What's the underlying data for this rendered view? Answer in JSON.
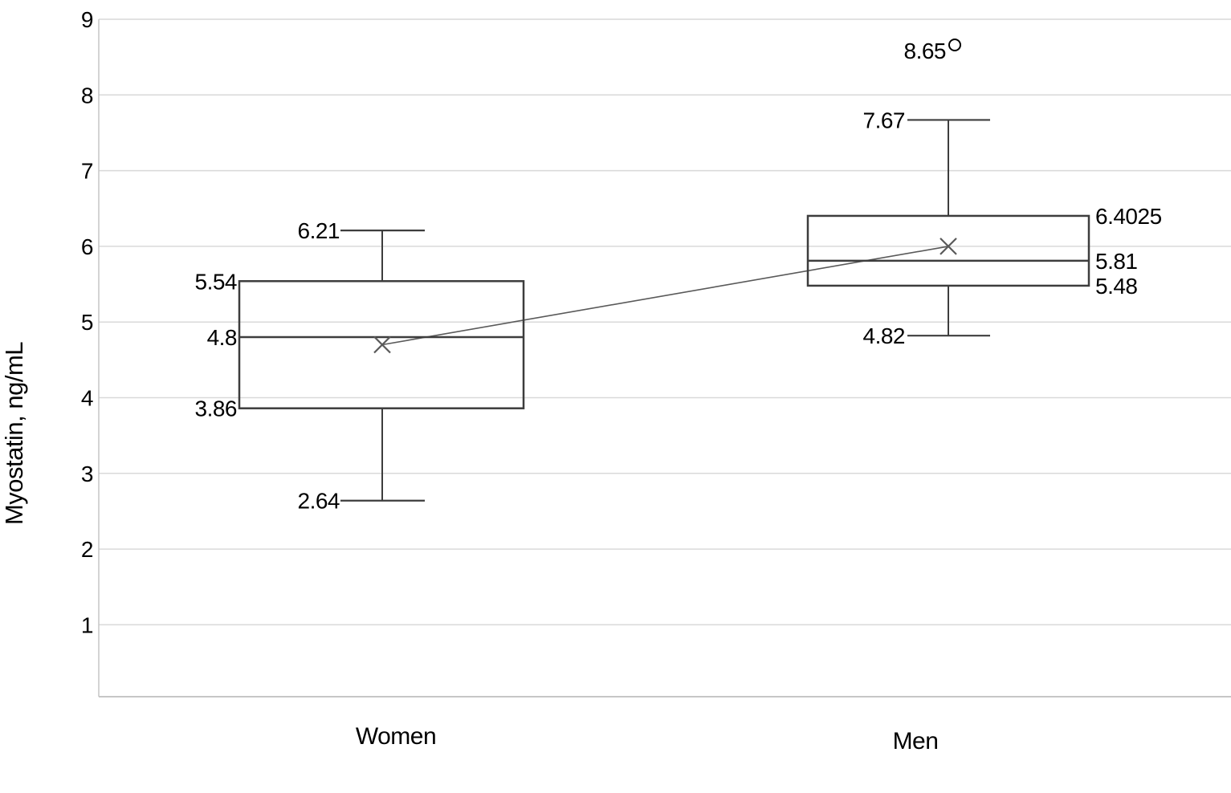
{
  "chart_data": {
    "type": "boxplot",
    "title": "",
    "xlabel": "",
    "ylabel": "Myostatin, ng/mL",
    "categories": [
      "Women",
      "Men"
    ],
    "y_ticks": [
      1,
      2,
      3,
      4,
      5,
      6,
      7,
      8,
      9
    ],
    "ylim": [
      0,
      9
    ],
    "grid": "horizontal",
    "legend": "none",
    "mean_marker": "x",
    "mean_connector_line": true,
    "boxes": [
      {
        "category": "Women",
        "whisker_low": 2.64,
        "q1": 3.86,
        "median": 4.8,
        "q3": 5.54,
        "whisker_high": 6.21,
        "mean": 4.7,
        "labels": {
          "whisker_high": "6.21",
          "q3": "5.54",
          "median": "4.8",
          "q1": "3.86",
          "whisker_low": "2.64"
        }
      },
      {
        "category": "Men",
        "whisker_low": 4.82,
        "q1": 5.48,
        "median": 5.81,
        "q3": 6.4025,
        "whisker_high": 7.67,
        "mean": 6.0,
        "outlier": {
          "value": 8.65,
          "label": "8.65",
          "marker": "circle"
        },
        "labels": {
          "whisker_high": "7.67",
          "q3": "6.4025",
          "median": "5.81",
          "q1": "5.48",
          "whisker_low": "4.82"
        }
      }
    ],
    "colors": {
      "background": "#ffffff",
      "grid": "#d9d9d9",
      "axis": "#c6c6c6",
      "box_stroke": "#3d3d3d",
      "mean": "#595959",
      "text": "#000000"
    }
  }
}
